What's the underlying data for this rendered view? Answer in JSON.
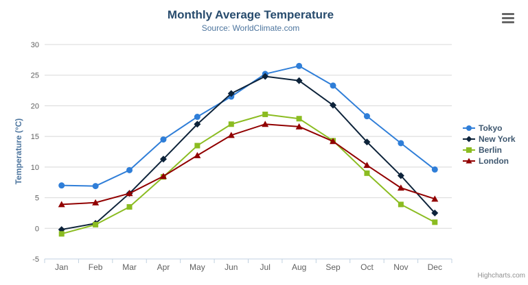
{
  "header": {
    "title": "Monthly Average Temperature",
    "subtitle": "Source: WorldClimate.com"
  },
  "chart_data": {
    "type": "line",
    "title": "Monthly Average Temperature",
    "subtitle": "Source: WorldClimate.com",
    "categories": [
      "Jan",
      "Feb",
      "Mar",
      "Apr",
      "May",
      "Jun",
      "Jul",
      "Aug",
      "Sep",
      "Oct",
      "Nov",
      "Dec"
    ],
    "series": [
      {
        "name": "Tokyo",
        "color": "#2f7ed8",
        "marker": "circle",
        "values": [
          7.0,
          6.9,
          9.5,
          14.5,
          18.2,
          21.5,
          25.2,
          26.5,
          23.3,
          18.3,
          13.9,
          9.6
        ]
      },
      {
        "name": "New York",
        "color": "#0d233a",
        "marker": "diamond",
        "values": [
          -0.2,
          0.8,
          5.7,
          11.3,
          17.0,
          22.0,
          24.8,
          24.1,
          20.1,
          14.1,
          8.6,
          2.5
        ]
      },
      {
        "name": "Berlin",
        "color": "#8bbc21",
        "marker": "square",
        "values": [
          -0.9,
          0.6,
          3.5,
          8.4,
          13.5,
          17.0,
          18.6,
          17.9,
          14.3,
          9.0,
          3.9,
          1.0
        ]
      },
      {
        "name": "London",
        "color": "#910000",
        "marker": "triangle",
        "values": [
          3.9,
          4.2,
          5.7,
          8.5,
          11.9,
          15.2,
          17.0,
          16.6,
          14.2,
          10.3,
          6.6,
          4.8
        ]
      }
    ],
    "xlabel": "",
    "ylabel": "Temperature (°C)",
    "ylim": [
      -5,
      30
    ],
    "ytick_step": 5,
    "grid": true,
    "legend_position": "right"
  },
  "style_colors": {
    "grid": "#D8D8D8",
    "axis_line": "#C0D0E0",
    "tick_label": "#606060",
    "title": "#274b6d",
    "subtitle": "#4d759e",
    "legend_text": "#3E576F",
    "credits": "#909090",
    "menu_icon": "#666666"
  },
  "credits": {
    "label": "Highcharts.com"
  }
}
